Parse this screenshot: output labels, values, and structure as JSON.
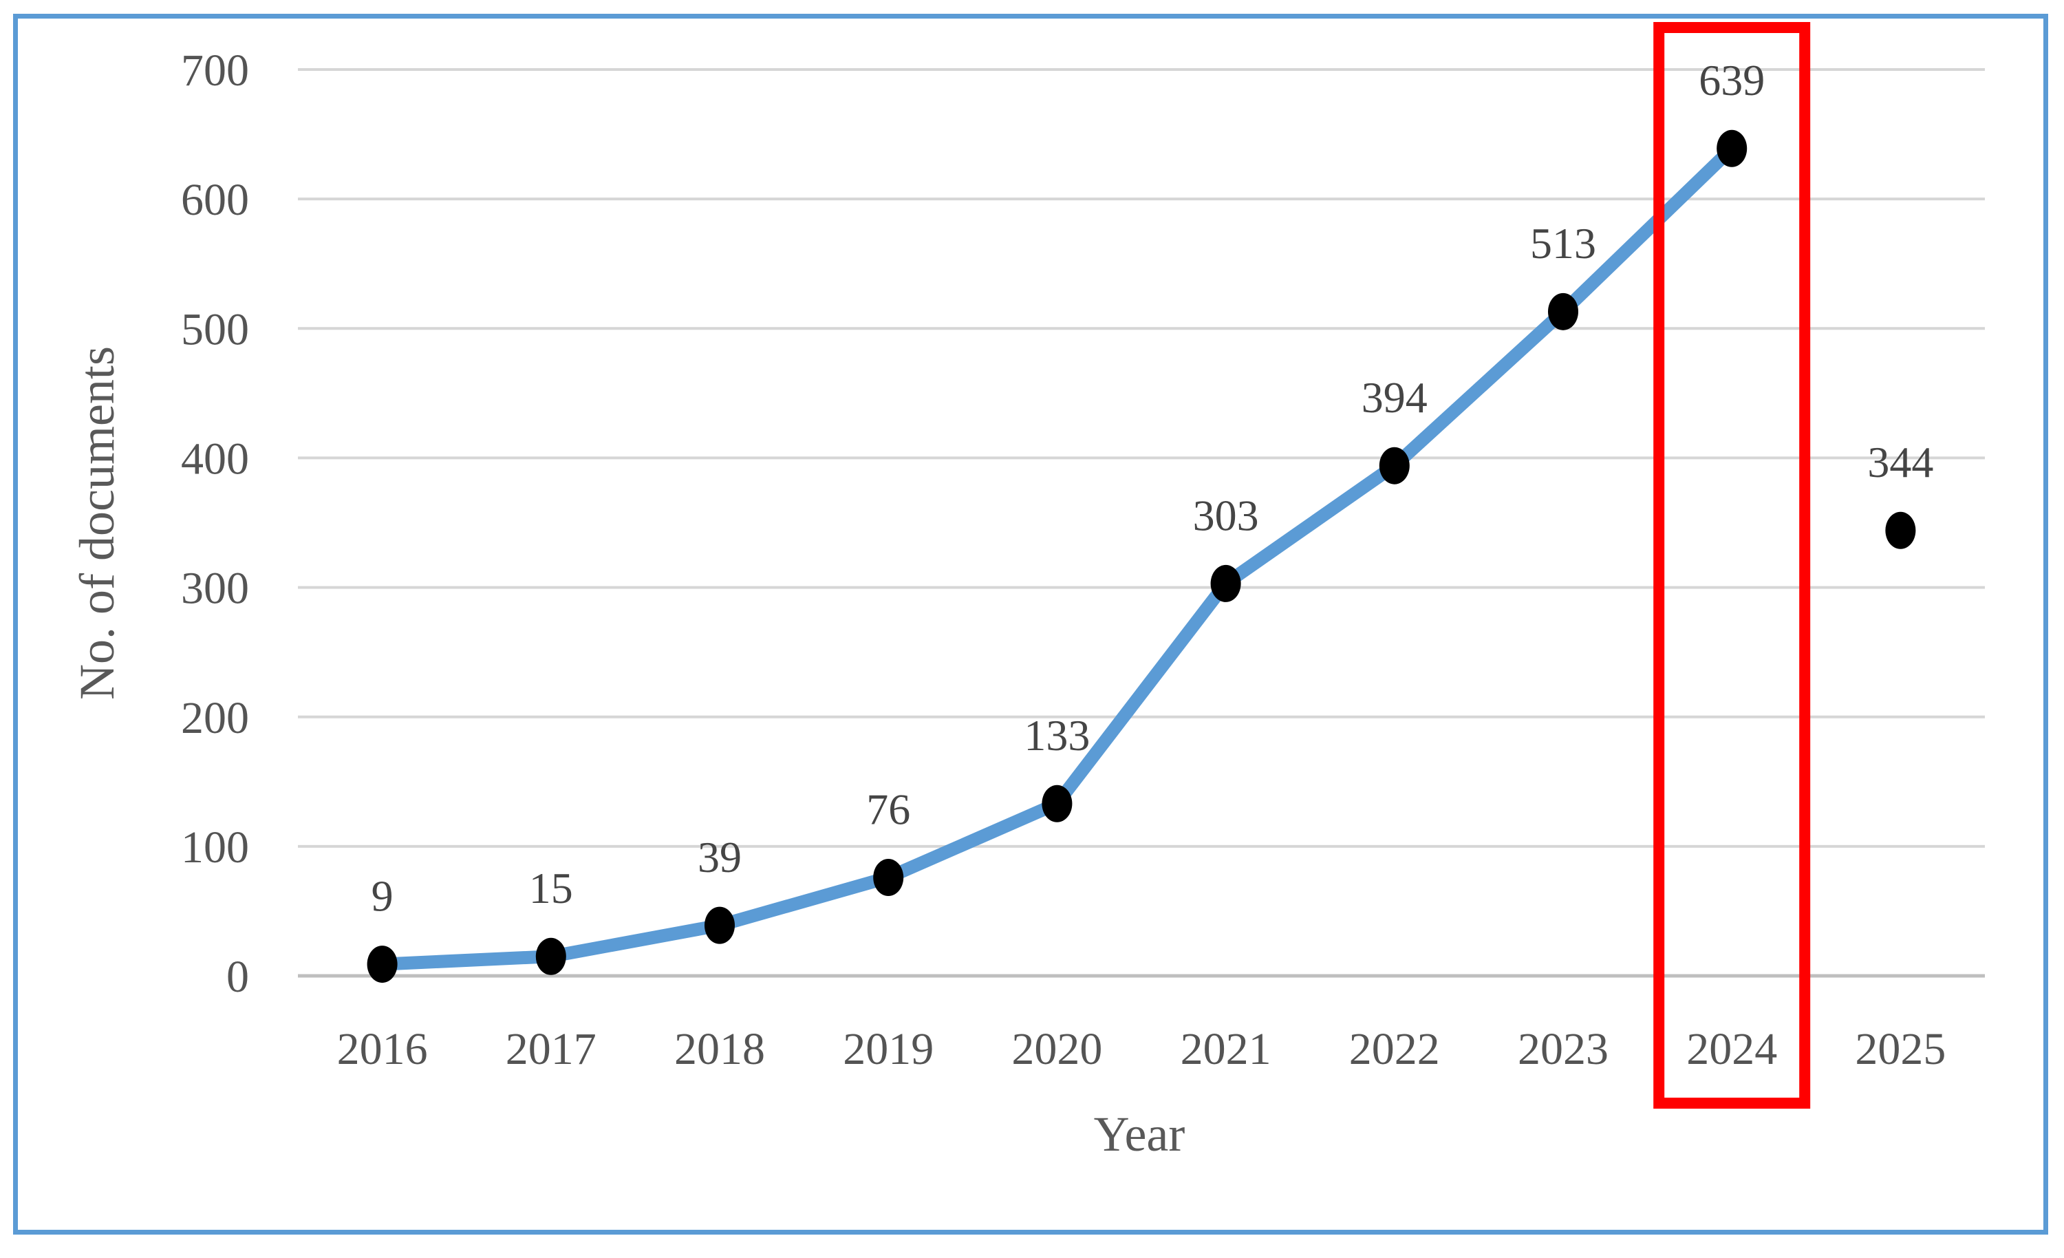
{
  "chart_data": {
    "type": "line",
    "title": "",
    "xlabel": "Year",
    "ylabel": "No. of documents",
    "categories": [
      "2016",
      "2017",
      "2018",
      "2019",
      "2020",
      "2021",
      "2022",
      "2023",
      "2024",
      "2025"
    ],
    "series": [
      {
        "name": "No. of documents",
        "values": [
          9,
          15,
          39,
          76,
          133,
          303,
          394,
          513,
          639,
          344
        ]
      }
    ],
    "data_labels": [
      "9",
      "15",
      "39",
      "76",
      "133",
      "303",
      "394",
      "513",
      "639",
      "344"
    ],
    "isolated_categories": [
      "2025"
    ],
    "ylim": [
      0,
      700
    ],
    "ytick_interval": 100,
    "yticks": [
      "0",
      "100",
      "200",
      "300",
      "400",
      "500",
      "600",
      "700"
    ],
    "grid": "horizontal",
    "legend": "none",
    "annotations": [
      {
        "type": "rect_highlight",
        "category": "2024",
        "color": "#FF0000"
      }
    ],
    "colors": {
      "line": "#5B9BD5",
      "marker": "#000000",
      "grid": "#D6D6D6",
      "axis_line": "#BFBFBF",
      "text": "#595959",
      "border": "#5B9BD5",
      "highlight": "#FF0000"
    }
  }
}
